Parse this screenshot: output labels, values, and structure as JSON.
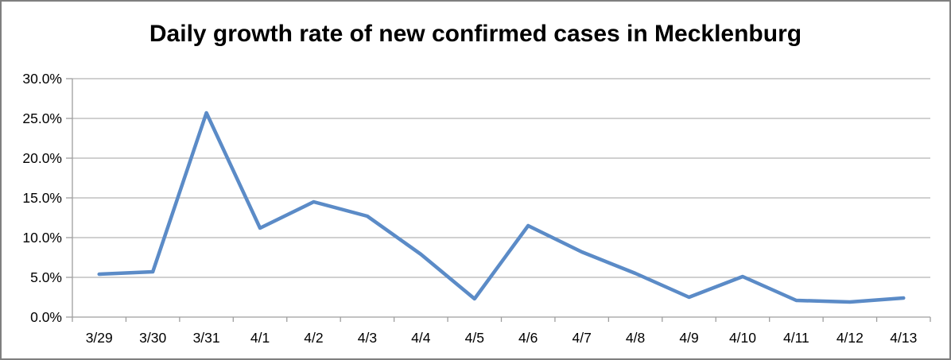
{
  "page": {
    "background": "#ffffff",
    "border_color": "#7f7f7f"
  },
  "chart_data": {
    "type": "line",
    "title": "Daily growth rate of new confirmed cases in Mecklenburg",
    "categories": [
      "3/29",
      "3/30",
      "3/31",
      "4/1",
      "4/2",
      "4/3",
      "4/4",
      "4/5",
      "4/6",
      "4/7",
      "4/8",
      "4/9",
      "4/10",
      "4/11",
      "4/12",
      "4/13"
    ],
    "series": [
      {
        "name": "Daily growth rate",
        "color": "#5b8bc7",
        "values": [
          5.4,
          5.7,
          25.7,
          11.2,
          14.5,
          12.7,
          7.9,
          2.3,
          11.5,
          8.2,
          5.5,
          2.5,
          5.1,
          2.1,
          1.9,
          2.4
        ]
      }
    ],
    "xlabel": "",
    "ylabel": "",
    "ylim": [
      0,
      30
    ],
    "ytick_step": 5,
    "ytick_labels": [
      "0.0%",
      "5.0%",
      "10.0%",
      "15.0%",
      "20.0%",
      "25.0%",
      "30.0%"
    ],
    "grid": true,
    "legend": "none",
    "gridline_color": "#b4b4b4",
    "axis_color": "#9e9e9e",
    "tick_label_color": "#000000",
    "tick_label_size": 17.5,
    "line_width": 4.5
  }
}
